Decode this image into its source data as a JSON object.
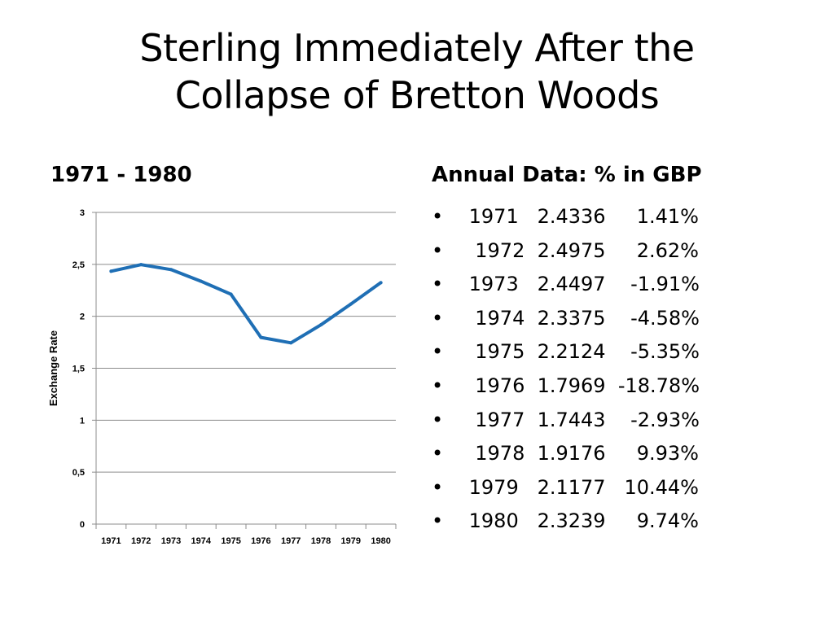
{
  "slide": {
    "title_line1": "Sterling Immediately After the",
    "title_line2": "Collapse of Bretton Woods",
    "left_heading": "1971 - 1980",
    "right_heading": "Annual Data: % in GBP",
    "bullet_glyph": "•"
  },
  "data_rows": [
    " 1971   2.4336     1.41%",
    "  1972  2.4975     2.62%",
    " 1973   2.4497    -1.91%",
    "  1974  2.3375    -4.58%",
    "  1975  2.2124    -5.35%",
    "  1976  1.7969  -18.78%",
    "  1977  1.7443    -2.93%",
    "  1978  1.9176     9.93%",
    " 1979   2.1177   10.44%",
    " 1980   2.3239     9.74%"
  ],
  "chart_data": {
    "type": "line",
    "categories": [
      "1971",
      "1972",
      "1973",
      "1974",
      "1975",
      "1976",
      "1977",
      "1978",
      "1979",
      "1980"
    ],
    "series": [
      {
        "values": [
          2.4336,
          2.4975,
          2.4497,
          2.3375,
          2.2124,
          1.7969,
          1.7443,
          1.9176,
          2.1177,
          2.3239
        ]
      }
    ],
    "ylabel": "Exchange Rate",
    "xlabel": "",
    "ylim": [
      0,
      3
    ],
    "yticks": [
      0,
      0.5,
      1,
      1.5,
      2,
      2.5,
      3
    ],
    "ytick_labels": [
      "0",
      "0,5",
      "1",
      "1,5",
      "2",
      "2,5",
      "3"
    ],
    "grid": true,
    "line_color": "#1f6fb5",
    "grid_color": "#8c8c8c"
  }
}
